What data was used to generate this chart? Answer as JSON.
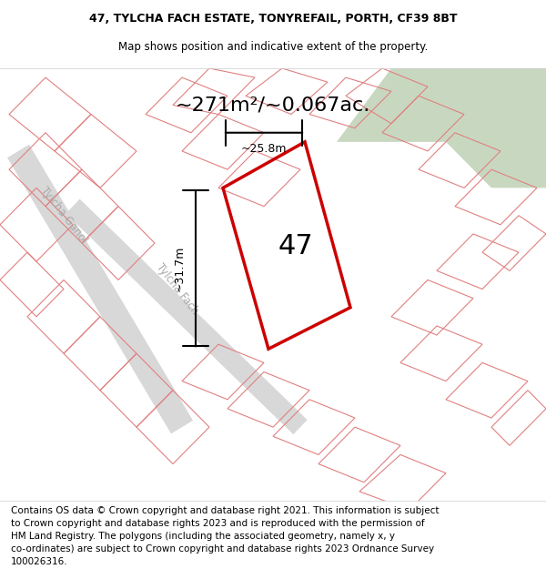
{
  "title_line1": "47, TYLCHA FACH ESTATE, TONYREFAIL, PORTH, CF39 8BT",
  "title_line2": "Map shows position and indicative extent of the property.",
  "area_text": "~271m²/~0.067ac.",
  "label_47": "47",
  "dim_vertical": "~31.7m",
  "dim_horizontal": "~25.8m",
  "footer_lines": [
    "Contains OS data © Crown copyright and database right 2021. This information is subject",
    "to Crown copyright and database rights 2023 and is reproduced with the permission of",
    "HM Land Registry. The polygons (including the associated geometry, namely x, y",
    "co-ordinates) are subject to Crown copyright and database rights 2023 Ordnance Survey",
    "100026316."
  ],
  "bg_map_color": "#e8e8e8",
  "bg_green_color": "#c8d8c0",
  "plot_bg": "#ffffff",
  "parcel_line_color": "#e08080",
  "highlight_color": "#cc0000",
  "title_fontsize": 9,
  "footer_fontsize": 7.5
}
